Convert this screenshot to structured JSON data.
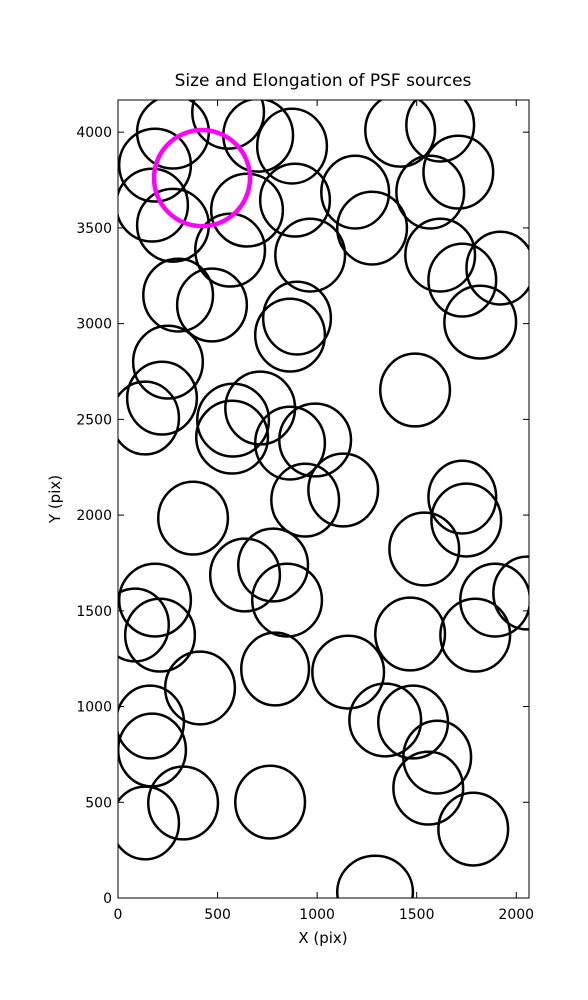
{
  "chart_data": {
    "type": "ellipse",
    "title": "Size and Elongation of PSF sources",
    "x_label": "X (pix)",
    "y_label": "Y (pix)",
    "xlim": [
      0,
      2064
    ],
    "ylim": [
      0,
      4168
    ],
    "xticks": [
      0,
      500,
      1000,
      1500,
      2000
    ],
    "yticks": [
      0,
      500,
      1000,
      1500,
      2000,
      2500,
      3000,
      3500,
      4000
    ],
    "color": "#000000",
    "sources": {
      "x": [
        276,
        553,
        704,
        874,
        186,
        171,
        276,
        648,
        889,
        1191,
        1276,
        1417,
        1618,
        1709,
        1568,
        1618,
        1729,
        1920,
        1819,
        965,
        563,
        302,
        472,
        899,
        864,
        251,
        221,
        136,
        578,
        714,
        573,
        864,
        990,
        1131,
        940,
        377,
        1492,
        1729,
        1749,
        1538,
        638,
        779,
        849,
        186,
        85,
        211,
        1894,
        2055,
        1794,
        1467,
        412,
        789,
        1156,
        1342,
        1482,
        1603,
        161,
        171,
        1558,
        327,
        764,
        136,
        1784,
        1291
      ],
      "y": [
        4000,
        4104,
        3984,
        3927,
        3828,
        3619,
        3514,
        3593,
        3645,
        3687,
        3499,
        4010,
        4037,
        3791,
        3687,
        3358,
        3227,
        3290,
        3008,
        3358,
        3384,
        3149,
        3097,
        3029,
        2940,
        2799,
        2611,
        2507,
        2496,
        2559,
        2407,
        2376,
        2392,
        2131,
        2078,
        1984,
        2653,
        2094,
        1974,
        1823,
        1687,
        1739,
        1556,
        1556,
        1426,
        1373,
        1556,
        1593,
        1373,
        1379,
        1097,
        1196,
        1180,
        930,
        919,
        736,
        919,
        773,
        574,
        496,
        501,
        392,
        360,
        31
      ],
      "width": [
        360,
        360,
        350,
        350,
        360,
        360,
        360,
        360,
        350,
        340,
        350,
        350,
        340,
        350,
        340,
        350,
        340,
        340,
        360,
        350,
        350,
        350,
        350,
        340,
        350,
        350,
        350,
        340,
        360,
        350,
        360,
        350,
        360,
        350,
        340,
        350,
        350,
        340,
        350,
        350,
        350,
        350,
        350,
        360,
        340,
        350,
        350,
        340,
        350,
        350,
        350,
        340,
        360,
        360,
        350,
        340,
        340,
        340,
        350,
        350,
        350,
        340,
        350,
        380
      ],
      "height": [
        380,
        380,
        380,
        390,
        380,
        380,
        380,
        380,
        380,
        380,
        380,
        380,
        380,
        380,
        380,
        380,
        380,
        380,
        380,
        380,
        380,
        380,
        380,
        380,
        380,
        380,
        380,
        380,
        380,
        380,
        380,
        380,
        380,
        380,
        380,
        380,
        380,
        380,
        380,
        380,
        380,
        380,
        380,
        380,
        380,
        380,
        380,
        380,
        380,
        380,
        380,
        380,
        380,
        380,
        380,
        380,
        380,
        380,
        380,
        380,
        380,
        380,
        380,
        380
      ]
    },
    "highlight": {
      "x": [
        422
      ],
      "y": [
        3760
      ],
      "width": [
        482
      ],
      "height": [
        502
      ],
      "color": "#ff00ff"
    }
  }
}
